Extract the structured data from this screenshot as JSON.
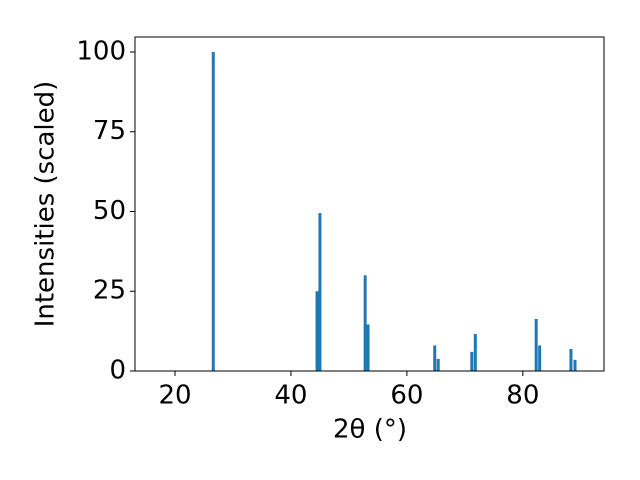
{
  "chart_data": {
    "type": "bar",
    "x_label": "2θ (°)",
    "y_label": "Intensities (scaled)",
    "x": [
      26.6,
      44.5,
      45.0,
      52.8,
      53.3,
      64.8,
      65.4,
      71.2,
      71.8,
      82.3,
      82.9,
      88.3,
      89.0
    ],
    "values": [
      100,
      25,
      49.5,
      30,
      14.6,
      8,
      3.8,
      6,
      11.6,
      16.3,
      8,
      6.9,
      3.5
    ],
    "color": "#1f77b4",
    "xlim": [
      13.1,
      94.0
    ],
    "xticks": [
      20,
      40,
      60,
      80
    ],
    "ylim": [
      0,
      104.7
    ],
    "yticks": [
      0,
      25,
      50,
      75,
      100
    ]
  }
}
